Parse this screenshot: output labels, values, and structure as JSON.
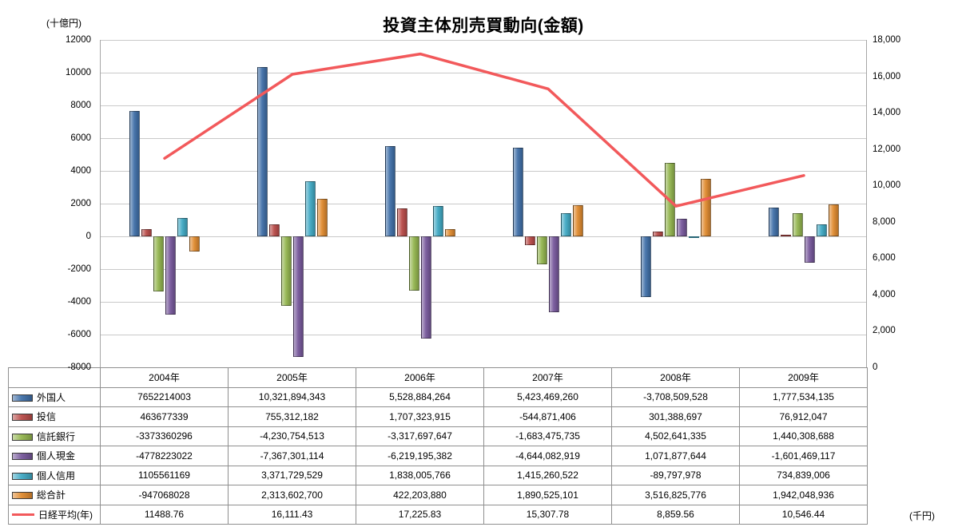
{
  "title": "投資主体別売買動向(金額)",
  "left_axis_unit": "(十億円)",
  "right_axis_unit": "(千円)",
  "chart_data": {
    "type": "bar",
    "title": "投資主体別売買動向(金額)",
    "categories": [
      "2004年",
      "2005年",
      "2006年",
      "2007年",
      "2008年",
      "2009年"
    ],
    "left_axis": {
      "label": "(十億円)",
      "min": -8000,
      "max": 12000,
      "step": 2000,
      "value_divisor": 1000000,
      "grid": true
    },
    "right_axis": {
      "label": "(千円)",
      "min": 0,
      "max": 18000,
      "step": 2000
    },
    "legend_position": "table-left",
    "series": [
      {
        "name": "外国人",
        "type": "bar",
        "color": "#3F6FA8",
        "values": [
          7652214003,
          10321894343,
          5528884264,
          5423469260,
          -3708509528,
          1777534135
        ]
      },
      {
        "name": "投信",
        "type": "bar",
        "color": "#B94B48",
        "values": [
          463677339,
          755312182,
          1707323915,
          -544871406,
          301388697,
          76912047
        ]
      },
      {
        "name": "信託銀行",
        "type": "bar",
        "color": "#93B54E",
        "values": [
          -3373360296,
          -4230754513,
          -3317697647,
          -1683475735,
          4502641335,
          1440308688
        ]
      },
      {
        "name": "個人現金",
        "type": "bar",
        "color": "#76579B",
        "values": [
          -4778223022,
          -7367301114,
          -6219195382,
          -4644082919,
          1071877644,
          -1601469117
        ]
      },
      {
        "name": "個人信用",
        "type": "bar",
        "color": "#3FA9C4",
        "values": [
          1105561169,
          3371729529,
          1838005766,
          1415260522,
          -89797978,
          734839006
        ]
      },
      {
        "name": "総合計",
        "type": "bar",
        "color": "#E08A2E",
        "values": [
          -947068028,
          2313602700,
          422203880,
          1890525101,
          3516825776,
          1942048936
        ]
      },
      {
        "name": "日経平均(年)",
        "type": "line",
        "axis": "right",
        "color": "#F2595B",
        "values": [
          11488.76,
          16111.43,
          17225.83,
          15307.78,
          8859.56,
          10546.44
        ]
      }
    ]
  },
  "table": {
    "corner": "",
    "header": [
      "2004年",
      "2005年",
      "2006年",
      "2007年",
      "2008年",
      "2009年"
    ],
    "rows": [
      {
        "label": "外国人",
        "key": "bar",
        "color": "#3F6FA8",
        "cells": [
          "7652214003",
          "10,321,894,343",
          "5,528,884,264",
          "5,423,469,260",
          "-3,708,509,528",
          "1,777,534,135"
        ]
      },
      {
        "label": "投信",
        "key": "bar",
        "color": "#B94B48",
        "cells": [
          "463677339",
          "755,312,182",
          "1,707,323,915",
          "-544,871,406",
          "301,388,697",
          "76,912,047"
        ]
      },
      {
        "label": "信託銀行",
        "key": "bar",
        "color": "#93B54E",
        "cells": [
          "-3373360296",
          "-4,230,754,513",
          "-3,317,697,647",
          "-1,683,475,735",
          "4,502,641,335",
          "1,440,308,688"
        ]
      },
      {
        "label": "個人現金",
        "key": "bar",
        "color": "#76579B",
        "cells": [
          "-4778223022",
          "-7,367,301,114",
          "-6,219,195,382",
          "-4,644,082,919",
          "1,071,877,644",
          "-1,601,469,117"
        ]
      },
      {
        "label": "個人信用",
        "key": "bar",
        "color": "#3FA9C4",
        "cells": [
          "1105561169",
          "3,371,729,529",
          "1,838,005,766",
          "1,415,260,522",
          "-89,797,978",
          "734,839,006"
        ]
      },
      {
        "label": "総合計",
        "key": "bar",
        "color": "#E08A2E",
        "cells": [
          "-947068028",
          "2,313,602,700",
          "422,203,880",
          "1,890,525,101",
          "3,516,825,776",
          "1,942,048,936"
        ]
      },
      {
        "label": "日経平均(年)",
        "key": "line",
        "color": "#F2595B",
        "cells": [
          "11488.76",
          "16,111.43",
          "17,225.83",
          "15,307.78",
          "8,859.56",
          "10,546.44"
        ]
      }
    ]
  }
}
